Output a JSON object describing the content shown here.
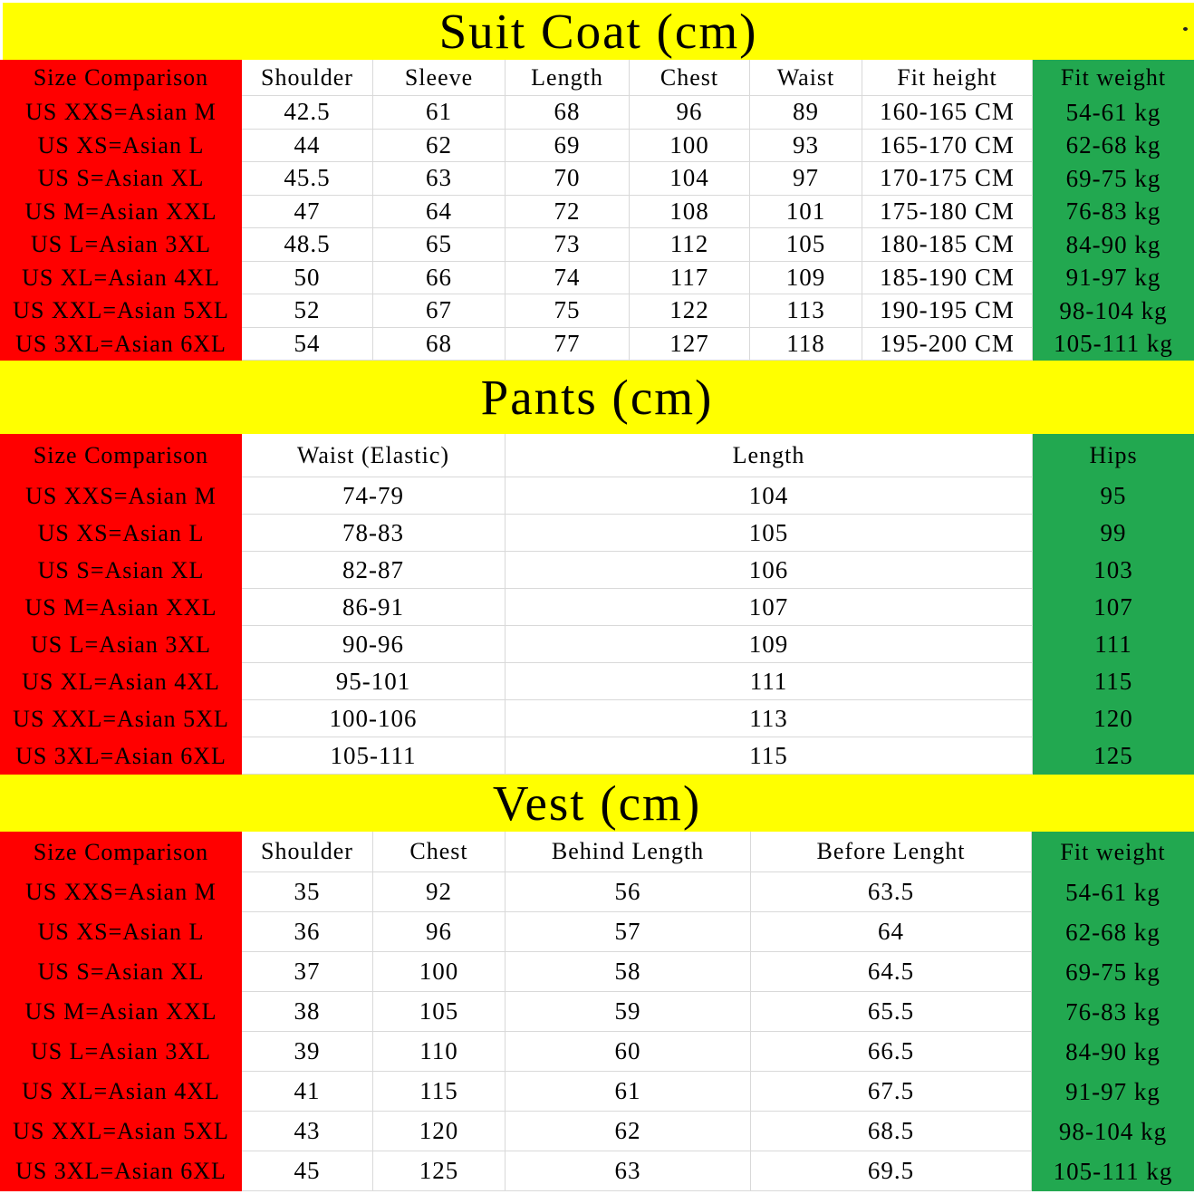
{
  "colors": {
    "title_band_bg": "#ffff00",
    "size_column_bg": "#ff0000",
    "accent_column_bg": "#22a850",
    "grid_line": "#d9d9d9",
    "text": "#000000"
  },
  "sections": [
    {
      "id": "suit-coat",
      "title": "Suit Coat (cm)",
      "columns": [
        "Size Comparison",
        "Shoulder",
        "Sleeve",
        "Length",
        "Chest",
        "Waist",
        "Fit height",
        "Fit weight"
      ],
      "rows": [
        [
          "US XXS=Asian M",
          "42.5",
          "61",
          "68",
          "96",
          "89",
          "160-165 CM",
          "54-61 kg"
        ],
        [
          "US XS=Asian L",
          "44",
          "62",
          "69",
          "100",
          "93",
          "165-170 CM",
          "62-68 kg"
        ],
        [
          "US S=Asian XL",
          "45.5",
          "63",
          "70",
          "104",
          "97",
          "170-175 CM",
          "69-75 kg"
        ],
        [
          "US M=Asian XXL",
          "47",
          "64",
          "72",
          "108",
          "101",
          "175-180 CM",
          "76-83 kg"
        ],
        [
          "US L=Asian 3XL",
          "48.5",
          "65",
          "73",
          "112",
          "105",
          "180-185 CM",
          "84-90 kg"
        ],
        [
          "US XL=Asian 4XL",
          "50",
          "66",
          "74",
          "117",
          "109",
          "185-190 CM",
          "91-97 kg"
        ],
        [
          "US XXL=Asian 5XL",
          "52",
          "67",
          "75",
          "122",
          "113",
          "190-195 CM",
          "98-104 kg"
        ],
        [
          "US 3XL=Asian 6XL",
          "54",
          "68",
          "77",
          "127",
          "118",
          "195-200 CM",
          "105-111 kg"
        ]
      ]
    },
    {
      "id": "pants",
      "title": "Pants (cm)",
      "columns": [
        "Size Comparison",
        "Waist (Elastic)",
        "Length",
        "Hips"
      ],
      "rows": [
        [
          "US XXS=Asian M",
          "74-79",
          "104",
          "95"
        ],
        [
          "US XS=Asian L",
          "78-83",
          "105",
          "99"
        ],
        [
          "US S=Asian XL",
          "82-87",
          "106",
          "103"
        ],
        [
          "US M=Asian XXL",
          "86-91",
          "107",
          "107"
        ],
        [
          "US L=Asian 3XL",
          "90-96",
          "109",
          "111"
        ],
        [
          "US XL=Asian 4XL",
          "95-101",
          "111",
          "115"
        ],
        [
          "US XXL=Asian 5XL",
          "100-106",
          "113",
          "120"
        ],
        [
          "US 3XL=Asian 6XL",
          "105-111",
          "115",
          "125"
        ]
      ]
    },
    {
      "id": "vest",
      "title": "Vest (cm)",
      "columns": [
        "Size Comparison",
        "Shoulder",
        "Chest",
        "Behind Length",
        "Before Lenght",
        "Fit weight"
      ],
      "rows": [
        [
          "US XXS=Asian M",
          "35",
          "92",
          "56",
          "63.5",
          "54-61 kg"
        ],
        [
          "US XS=Asian L",
          "36",
          "96",
          "57",
          "64",
          "62-68 kg"
        ],
        [
          "US S=Asian XL",
          "37",
          "100",
          "58",
          "64.5",
          "69-75 kg"
        ],
        [
          "US M=Asian XXL",
          "38",
          "105",
          "59",
          "65.5",
          "76-83 kg"
        ],
        [
          "US L=Asian 3XL",
          "39",
          "110",
          "60",
          "66.5",
          "84-90 kg"
        ],
        [
          "US XL=Asian 4XL",
          "41",
          "115",
          "61",
          "67.5",
          "91-97 kg"
        ],
        [
          "US XXL=Asian 5XL",
          "43",
          "120",
          "62",
          "68.5",
          "98-104 kg"
        ],
        [
          "US 3XL=Asian 6XL",
          "45",
          "125",
          "63",
          "69.5",
          "105-111 kg"
        ]
      ]
    }
  ]
}
